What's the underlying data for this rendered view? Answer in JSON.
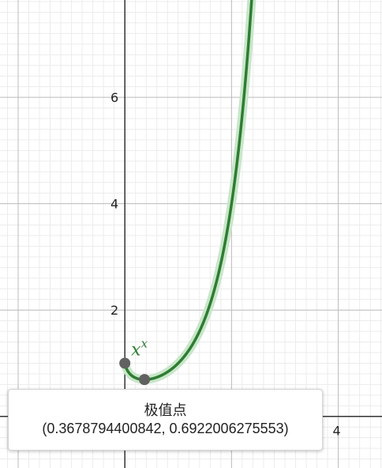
{
  "graph": {
    "x_range": [
      -2.34,
      4.82
    ],
    "y_range": [
      -0.97,
      7.83
    ],
    "minor_step": 0.2,
    "major_step": 2,
    "x_tick_labels": [
      {
        "value": 4,
        "label": "4"
      }
    ],
    "y_tick_labels": [
      {
        "value": 2,
        "label": "2"
      },
      {
        "value": 4,
        "label": "4"
      },
      {
        "value": 6,
        "label": "6"
      }
    ],
    "colors": {
      "curve": "#2e7d32",
      "curve_highlight": "#c8e6c9",
      "point": "#616161",
      "minor_grid": "#ececec",
      "major_grid": "#bdbdbd",
      "axis": "#333333"
    }
  },
  "function": {
    "label_base": "x",
    "label_exponent": "x",
    "domain": [
      0.003,
      2.9
    ]
  },
  "points": [
    {
      "name": "y-intercept-point",
      "x": 0,
      "y": 1
    },
    {
      "name": "extremum-point",
      "x": 0.3678794400842,
      "y": 0.6922006275553
    }
  ],
  "tooltip": {
    "title": "极值点",
    "coords": "(0.3678794400842, 0.6922006275553)"
  }
}
